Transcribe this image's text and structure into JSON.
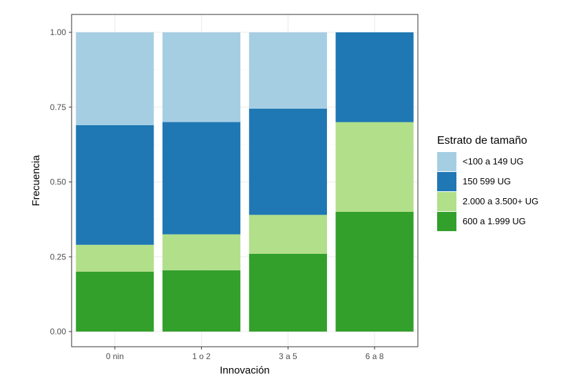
{
  "chart_data": {
    "type": "bar",
    "stacked": true,
    "xlabel": "Innovación",
    "ylabel": "Frecuencia",
    "ylim": [
      0,
      1
    ],
    "grid": true,
    "legend_placement": "right",
    "categories": [
      "0 nin",
      "1 o 2",
      "3 a 5",
      "6 a 8"
    ],
    "y_ticks": [
      "0.00",
      "0.25",
      "0.50",
      "0.75",
      "1.00"
    ],
    "legend_title": "Estrato de tamaño",
    "series": [
      {
        "name": "600 a 1.999 UG",
        "color": "#33a02c",
        "values": [
          0.2,
          0.205,
          0.26,
          0.4
        ]
      },
      {
        "name": "2.000 a 3.500+ UG",
        "color": "#b2df8a",
        "values": [
          0.09,
          0.12,
          0.13,
          0.3
        ]
      },
      {
        "name": "150 599 UG",
        "color": "#1f78b4",
        "values": [
          0.4,
          0.375,
          0.355,
          0.3
        ]
      },
      {
        "name": "<100 a 149 UG",
        "color": "#a6cee3",
        "values": [
          0.31,
          0.3,
          0.255,
          0.0
        ]
      }
    ],
    "legend_order": [
      "<100 a 149 UG",
      "150 599 UG",
      "2.000 a 3.500+ UG",
      "600 a 1.999 UG"
    ]
  }
}
